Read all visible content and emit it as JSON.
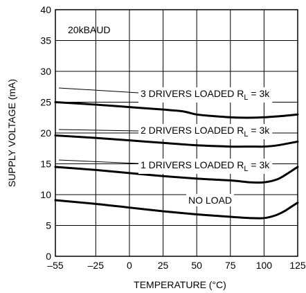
{
  "chart_data": {
    "type": "line",
    "xlabel": "TEMPERATURE (°C)",
    "ylabel": "SUPPLY VOLTAGE (mA)",
    "xlim": [
      -55,
      125
    ],
    "ylim": [
      0,
      40
    ],
    "x_ticks": [
      "–55",
      "–25",
      "0",
      "25",
      "50",
      "75",
      "100",
      "125"
    ],
    "x_tick_values": [
      -55,
      -25,
      0,
      25,
      50,
      75,
      100,
      125
    ],
    "y_ticks": [
      "0",
      "5",
      "10",
      "15",
      "20",
      "25",
      "30",
      "35",
      "40"
    ],
    "y_tick_values": [
      0,
      5,
      10,
      15,
      20,
      25,
      30,
      35,
      40
    ],
    "grid": true,
    "annotation_corner": "20kBAUD",
    "series": [
      {
        "name": "3 DRIVERS LOADED R",
        "label_main": "3 DRIVERS LOADED R",
        "label_sub": "L",
        "label_tail": " = 3k",
        "x": [
          -55,
          -25,
          0,
          25,
          40,
          50,
          65,
          80,
          95,
          110,
          125
        ],
        "y": [
          25.0,
          24.6,
          24.2,
          23.8,
          23.5,
          23.0,
          22.7,
          22.5,
          22.5,
          22.7,
          23.0
        ]
      },
      {
        "name": "2 DRIVERS LOADED R",
        "label_main": "2 DRIVERS LOADED R",
        "label_sub": "L",
        "label_tail": " = 3k",
        "x": [
          -55,
          -25,
          0,
          25,
          50,
          75,
          90,
          100,
          110,
          125
        ],
        "y": [
          19.6,
          19.2,
          18.8,
          18.4,
          18.0,
          17.8,
          17.8,
          17.8,
          18.0,
          18.6
        ]
      },
      {
        "name": "1 DRIVERS LOADED R",
        "label_main": "1 DRIVERS LOADED R",
        "label_sub": "L",
        "label_tail": " = 3k",
        "x": [
          -55,
          -25,
          0,
          25,
          50,
          75,
          90,
          100,
          110,
          118,
          125
        ],
        "y": [
          14.5,
          14.0,
          13.5,
          13.0,
          12.6,
          12.3,
          12.0,
          12.0,
          12.5,
          13.5,
          14.5
        ]
      },
      {
        "name": "NO LOAD",
        "label_main": "NO LOAD",
        "label_sub": "",
        "label_tail": "",
        "x": [
          -55,
          -25,
          0,
          25,
          50,
          75,
          90,
          100,
          108,
          115,
          120,
          125
        ],
        "y": [
          9.1,
          8.5,
          7.9,
          7.3,
          6.8,
          6.4,
          6.2,
          6.2,
          6.6,
          7.3,
          8.0,
          8.7
        ]
      }
    ]
  }
}
